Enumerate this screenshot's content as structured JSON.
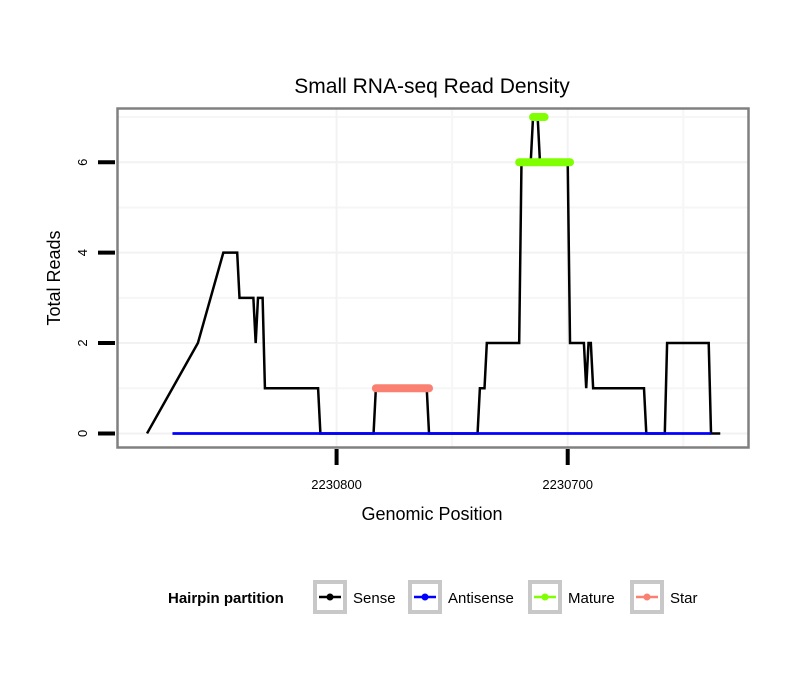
{
  "chart_data": {
    "type": "line",
    "title": "Small RNA-seq Read Density",
    "xlabel": "Genomic Position",
    "ylabel": "Total Reads",
    "x_reversed": true,
    "xlim": [
      2230895,
      2230622
    ],
    "ylim": [
      -0.3,
      7.2
    ],
    "x_ticks": [
      2230800,
      2230700
    ],
    "x_tick_labels": [
      "2230800",
      "2230700"
    ],
    "x_minor_grid": [
      2230750,
      2230650
    ],
    "y_ticks": [
      0,
      2,
      4,
      6
    ],
    "y_tick_labels": [
      "0",
      "2",
      "4",
      "6"
    ],
    "y_minor_grid": [
      1,
      3,
      5,
      7
    ],
    "grid": true,
    "legend": {
      "title": "Hairpin partition",
      "position": "bottom",
      "entries": [
        {
          "label": "Sense",
          "color": "#000000"
        },
        {
          "label": "Antisense",
          "color": "#0000ff"
        },
        {
          "label": "Mature",
          "color": "#7fff00"
        },
        {
          "label": "Star",
          "color": "#fa8072"
        }
      ]
    },
    "series": [
      {
        "name": "Sense",
        "color": "#000000",
        "style": "line",
        "x": [
          2230882,
          2230871,
          2230860,
          2230849,
          2230843,
          2230842,
          2230836,
          2230835,
          2230834,
          2230832,
          2230831,
          2230808,
          2230807,
          2230784,
          2230783,
          2230761,
          2230760,
          2230739,
          2230738,
          2230736,
          2230735,
          2230721,
          2230720,
          2230716,
          2230715,
          2230713,
          2230712,
          2230700,
          2230699,
          2230693,
          2230692,
          2230691,
          2230690,
          2230689,
          2230667,
          2230666,
          2230658,
          2230657,
          2230639,
          2230638,
          2230634
        ],
        "y": [
          0,
          1,
          2,
          4,
          4,
          3,
          3,
          2,
          3,
          3,
          1,
          1,
          0,
          0,
          1,
          1,
          0,
          0,
          1,
          1,
          2,
          2,
          6,
          6,
          7,
          7,
          6,
          6,
          2,
          2,
          1,
          2,
          2,
          1,
          1,
          0,
          0,
          2,
          2,
          0,
          0
        ]
      },
      {
        "name": "Antisense",
        "color": "#0000ff",
        "style": "line",
        "x": [
          2230871,
          2230808,
          2230784,
          2230761,
          2230739,
          2230666,
          2230658,
          2230638
        ],
        "y": [
          0,
          0,
          0,
          0,
          0,
          0,
          0,
          0
        ],
        "segments": [
          [
            2230871,
            2230638
          ]
        ]
      },
      {
        "name": "Mature",
        "color": "#7fff00",
        "style": "segments",
        "segments": [
          {
            "x0": 2230721,
            "x1": 2230713,
            "y": 6
          },
          {
            "x0": 2230715,
            "x1": 2230710,
            "y": 7
          },
          {
            "x0": 2230712,
            "x1": 2230699,
            "y": 6
          }
        ]
      },
      {
        "name": "Star",
        "color": "#fa8072",
        "style": "segments",
        "segments": [
          {
            "x0": 2230783,
            "x1": 2230760,
            "y": 1
          }
        ]
      }
    ]
  }
}
